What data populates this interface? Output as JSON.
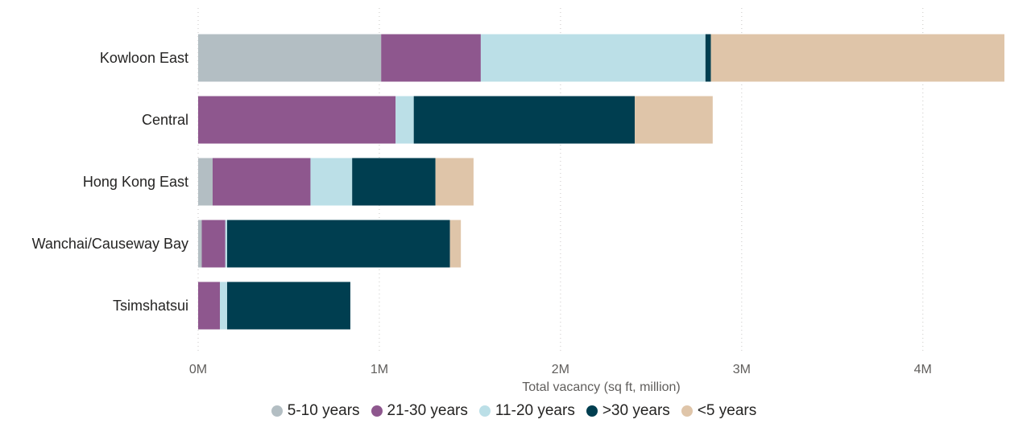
{
  "chart_data": {
    "type": "bar",
    "orientation": "horizontal",
    "stacked": true,
    "title": "",
    "xlabel": "Total vacancy (sq ft, million)",
    "ylabel": "",
    "xlim": [
      0,
      4.45
    ],
    "x_ticks": [
      0,
      1,
      2,
      3,
      4
    ],
    "x_tick_labels": [
      "0M",
      "1M",
      "2M",
      "3M",
      "4M"
    ],
    "grid": "vertical dotted",
    "legend_position": "bottom-center",
    "categories": [
      "Kowloon East",
      "Central",
      "Hong Kong East",
      "Wanchai/Causeway Bay",
      "Tsimshatsui"
    ],
    "series": [
      {
        "name": "5-10 years",
        "color": "#b3bec3",
        "values": [
          1.01,
          0.0,
          0.08,
          0.02,
          0.0
        ]
      },
      {
        "name": "21-30 years",
        "color": "#8e578e",
        "values": [
          0.55,
          1.09,
          0.54,
          0.13,
          0.12
        ]
      },
      {
        "name": "11-20 years",
        "color": "#bbdfe7",
        "values": [
          1.24,
          0.1,
          0.23,
          0.01,
          0.04
        ]
      },
      {
        "name": ">30 years",
        "color": "#003e50",
        "values": [
          0.03,
          1.22,
          0.46,
          1.23,
          0.68
        ]
      },
      {
        "name": "<5 years",
        "color": "#dfc5a9",
        "values": [
          1.62,
          0.43,
          0.21,
          0.06,
          0.0
        ]
      }
    ]
  }
}
